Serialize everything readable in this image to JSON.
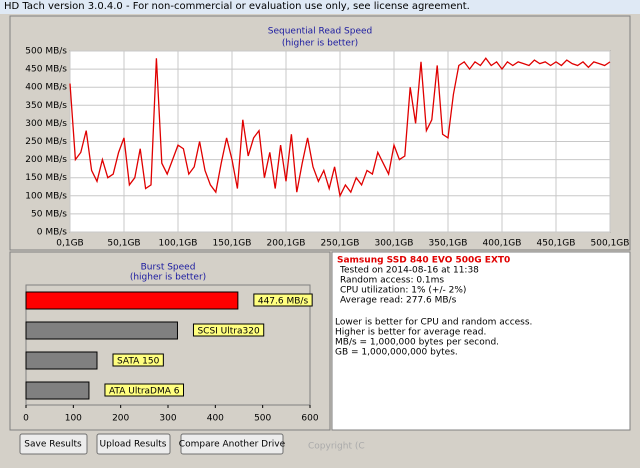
{
  "window_title": "HD Tach version 3.0.4.0  - For non-commercial or evaluation use only, see license agreement.",
  "chart_data": [
    {
      "type": "line",
      "title": "Sequential Read Speed",
      "subtitle": "(higher is better)",
      "x": [
        0.1,
        5.1,
        10.1,
        15.1,
        20.1,
        25.1,
        30.1,
        35.1,
        40.1,
        45.1,
        50.1,
        55.1,
        60.1,
        65.1,
        70.1,
        75.1,
        80.1,
        85.1,
        90.1,
        95.1,
        100.1,
        105.1,
        110.1,
        115.1,
        120.1,
        125.1,
        130.1,
        135.1,
        140.1,
        145.1,
        150.1,
        155.1,
        160.1,
        165.1,
        170.1,
        175.1,
        180.1,
        185.1,
        190.1,
        195.1,
        200.1,
        205.1,
        210.1,
        215.1,
        220.1,
        225.1,
        230.1,
        235.1,
        240.1,
        245.1,
        250.1,
        255.1,
        260.1,
        265.1,
        270.1,
        275.1,
        280.1,
        285.1,
        290.1,
        295.1,
        300.1,
        305.1,
        310.1,
        315.1,
        320.1,
        325.1,
        330.1,
        335.1,
        340.1,
        345.1,
        350.1,
        355.1,
        360.1,
        365.1,
        370.1,
        375.1,
        380.1,
        385.1,
        390.1,
        395.1,
        400.1,
        405.1,
        410.1,
        415.1,
        420.1,
        425.1,
        430.1,
        435.1,
        440.1,
        445.1,
        450.1,
        455.1,
        460.1,
        465.1,
        470.1,
        475.1,
        480.1,
        485.1,
        490.1,
        495.1,
        500.1
      ],
      "series": [
        {
          "name": "Read",
          "color": "#e00000",
          "values": [
            410,
            200,
            220,
            280,
            170,
            140,
            200,
            150,
            160,
            220,
            260,
            130,
            150,
            230,
            120,
            130,
            480,
            190,
            160,
            200,
            240,
            230,
            160,
            180,
            250,
            170,
            130,
            110,
            190,
            260,
            200,
            120,
            310,
            210,
            260,
            280,
            150,
            220,
            120,
            240,
            140,
            270,
            110,
            190,
            260,
            180,
            140,
            170,
            120,
            180,
            100,
            130,
            110,
            150,
            130,
            170,
            160,
            220,
            190,
            160,
            240,
            200,
            210,
            400,
            300,
            470,
            280,
            310,
            460,
            270,
            260,
            380,
            460,
            470,
            450,
            470,
            460,
            480,
            460,
            470,
            450,
            470,
            460,
            470,
            465,
            460,
            475,
            465,
            470,
            460,
            470,
            460,
            475,
            465,
            460,
            470,
            455,
            470,
            465,
            460,
            470
          ]
        }
      ],
      "xlim": [
        0.1,
        500.1
      ],
      "xticks": [
        {
          "value": 0.1,
          "label": "0,1GB"
        },
        {
          "value": 50.1,
          "label": "50,1GB"
        },
        {
          "value": 100.1,
          "label": "100,1GB"
        },
        {
          "value": 150.1,
          "label": "150,1GB"
        },
        {
          "value": 200.1,
          "label": "200,1GB"
        },
        {
          "value": 250.1,
          "label": "250,1GB"
        },
        {
          "value": 300.1,
          "label": "300,1GB"
        },
        {
          "value": 350.1,
          "label": "350,1GB"
        },
        {
          "value": 400.1,
          "label": "400,1GB"
        },
        {
          "value": 450.1,
          "label": "450,1GB"
        },
        {
          "value": 500.1,
          "label": "500,1GB"
        }
      ],
      "ylim": [
        0,
        500
      ],
      "yticks": [
        {
          "value": 0,
          "label": "0 MB/s"
        },
        {
          "value": 50,
          "label": "50 MB/s"
        },
        {
          "value": 100,
          "label": "100 MB/s"
        },
        {
          "value": 150,
          "label": "150 MB/s"
        },
        {
          "value": 200,
          "label": "200 MB/s"
        },
        {
          "value": 250,
          "label": "250 MB/s"
        },
        {
          "value": 300,
          "label": "300 MB/s"
        },
        {
          "value": 350,
          "label": "350 MB/s"
        },
        {
          "value": 400,
          "label": "400 MB/s"
        },
        {
          "value": 450,
          "label": "450 MB/s"
        },
        {
          "value": 500,
          "label": "500 MB/s"
        }
      ],
      "grid": true
    },
    {
      "type": "hbar",
      "title": "Burst Speed",
      "subtitle": "(higher is better)",
      "categories": [
        null,
        "SCSI Ultra320",
        "SATA 150",
        "ATA UltraDMA 6"
      ],
      "values": [
        447.6,
        320,
        150,
        133
      ],
      "value_labels": [
        "447.6 MB/s",
        null,
        null,
        null
      ],
      "colors": [
        "#ff0000",
        "#808080",
        "#808080",
        "#808080"
      ],
      "xlim": [
        0,
        600
      ],
      "xticks": [
        0,
        100,
        200,
        300,
        400,
        500,
        600
      ]
    }
  ],
  "info": {
    "drive": "Samsung SSD 840 EVO 500G EXT0",
    "lines": [
      "Tested on 2014-08-16 at 11:38",
      "Random access: 0.1ms",
      "CPU utilization: 1% (+/- 2%)",
      "Average read: 277.6 MB/s"
    ],
    "notes": [
      "Lower is better for CPU and random access.",
      "Higher is better for average read.",
      "MB/s = 1,000,000 bytes per second.",
      "GB = 1,000,000,000 bytes."
    ]
  },
  "buttons": [
    "Save Results",
    "Upload Results",
    "Compare Another Drive"
  ],
  "copyright": "Copyright (C"
}
